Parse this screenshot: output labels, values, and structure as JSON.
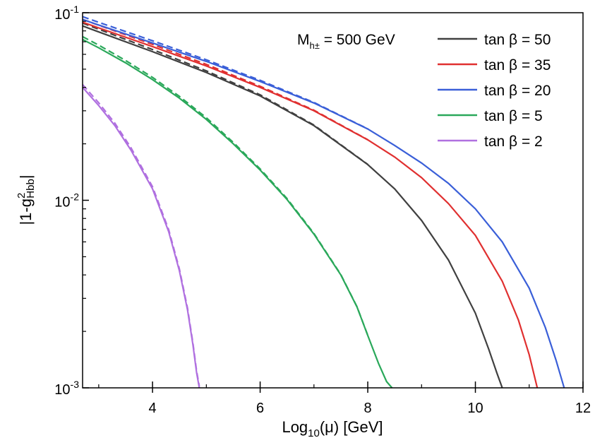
{
  "chart_data": {
    "type": "line",
    "title": "",
    "xlabel": "Log10(μ) [GeV]",
    "xlabel_parts": {
      "base": "Log",
      "sub": "10",
      "rest": "(μ) [GeV]"
    },
    "ylabel": "|1-g²Hbb|",
    "ylabel_parts": {
      "base": "|1-g",
      "sup": "2",
      "sub": "Hbb",
      "end": "|"
    },
    "xlim": [
      2.7,
      12.0
    ],
    "ylim": [
      0.001,
      0.1
    ],
    "yscale": "log",
    "x_ticks": [
      4,
      6,
      8,
      10,
      12
    ],
    "x_tick_labels": [
      "4",
      "6",
      "8",
      "10",
      "12"
    ],
    "x_minor_ticks": [
      3,
      5,
      7,
      9,
      11
    ],
    "y_ticks": [
      0.1,
      0.01,
      0.001
    ],
    "y_tick_labels": [
      {
        "base": "10",
        "exp": "-1"
      },
      {
        "base": "10",
        "exp": "-2"
      },
      {
        "base": "10",
        "exp": "-3"
      }
    ],
    "legend": {
      "placement": "top-right",
      "header": {
        "base": "M",
        "sub": "h±",
        "rest": " = 500 GeV"
      }
    },
    "series": [
      {
        "name": "tan β = 50",
        "color": "#404040",
        "x": [
          2.7,
          3,
          4,
          5,
          6,
          7,
          8,
          8.5,
          9,
          9.5,
          10,
          10.25,
          10.4,
          10.5
        ],
        "y": [
          0.085,
          0.079,
          0.062,
          0.048,
          0.036,
          0.025,
          0.0155,
          0.0115,
          0.0078,
          0.0048,
          0.0025,
          0.0016,
          0.0012,
          0.001
        ]
      },
      {
        "name": "tan β = 35",
        "color": "#e03030",
        "x": [
          2.7,
          3,
          4,
          5,
          6,
          7,
          8,
          8.5,
          9,
          9.5,
          10,
          10.5,
          10.8,
          11,
          11.15
        ],
        "y": [
          0.089,
          0.083,
          0.066,
          0.052,
          0.04,
          0.03,
          0.021,
          0.017,
          0.0132,
          0.0096,
          0.0065,
          0.0037,
          0.0023,
          0.0015,
          0.001
        ]
      },
      {
        "name": "tan β = 20",
        "color": "#3a5fd8",
        "x": [
          2.7,
          3,
          4,
          5,
          6,
          7,
          8,
          8.5,
          9,
          9.5,
          10,
          10.5,
          11,
          11.3,
          11.5,
          11.65
        ],
        "y": [
          0.092,
          0.086,
          0.069,
          0.055,
          0.043,
          0.033,
          0.024,
          0.0196,
          0.0158,
          0.0123,
          0.009,
          0.006,
          0.0034,
          0.0021,
          0.0014,
          0.001
        ]
      },
      {
        "name": "tan β = 5",
        "color": "#2aa85a",
        "x": [
          2.7,
          3,
          3.5,
          4,
          4.5,
          5,
          5.5,
          6,
          6.5,
          7,
          7.5,
          7.8,
          8,
          8.2,
          8.35,
          8.45
        ],
        "y": [
          0.072,
          0.065,
          0.054,
          0.044,
          0.035,
          0.027,
          0.02,
          0.0145,
          0.0101,
          0.0066,
          0.004,
          0.0027,
          0.0019,
          0.00135,
          0.00108,
          0.001
        ]
      },
      {
        "name": "tan β = 2",
        "color": "#b070e0",
        "x": [
          2.7,
          3,
          3.3,
          3.6,
          4,
          4.3,
          4.5,
          4.65,
          4.75,
          4.82,
          4.87
        ],
        "y": [
          0.04,
          0.032,
          0.025,
          0.0185,
          0.0115,
          0.0068,
          0.0042,
          0.0026,
          0.0017,
          0.0012,
          0.001
        ]
      }
    ]
  }
}
